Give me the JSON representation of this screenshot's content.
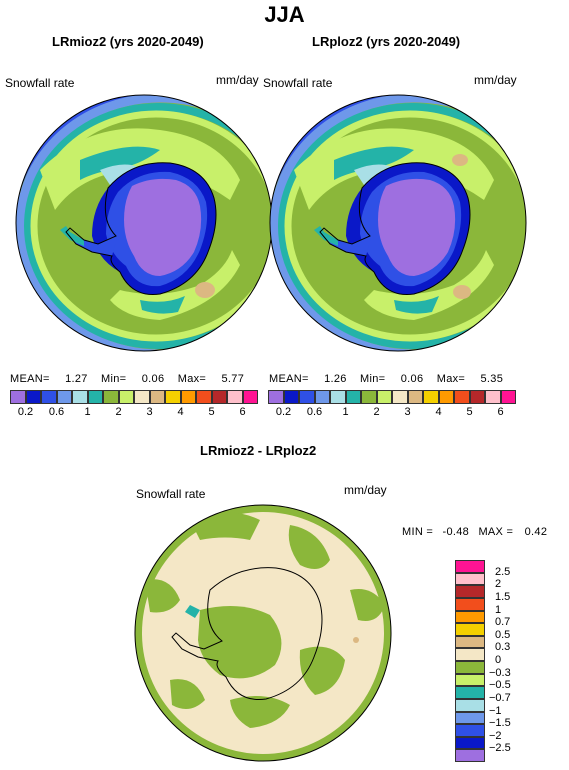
{
  "title": "JJA",
  "panels": [
    {
      "title": "LRmioz2 (yrs 2020-2049)",
      "variable": "Snowfall rate",
      "units": "mm/day",
      "stats": {
        "mean_label": "MEAN=",
        "mean": "1.27",
        "min_label": "Min=",
        "min": "0.06",
        "max_label": "Max=",
        "max": "5.77"
      }
    },
    {
      "title": "LRploz2 (yrs 2020-2049)",
      "variable": "Snowfall rate",
      "units": "mm/day",
      "stats": {
        "mean_label": "MEAN=",
        "mean": "1.26",
        "min_label": "Min=",
        "min": "0.06",
        "max_label": "Max=",
        "max": "5.35"
      }
    }
  ],
  "abs_colorbar": {
    "tick_labels": [
      "0.2",
      "0.6",
      "1",
      "2",
      "3",
      "4",
      "5",
      "6"
    ],
    "colors": [
      "#9e6fe0",
      "#0a18c8",
      "#2f50e6",
      "#6e98ea",
      "#a9dfe6",
      "#24b3a8",
      "#8bb73a",
      "#c8f06a",
      "#f4e7c6",
      "#dcb882",
      "#f4d000",
      "#ff9a00",
      "#f24e1c",
      "#b5282a",
      "#ffc0cb",
      "#ff1493"
    ]
  },
  "diff_panel": {
    "title": "LRmioz2 - LRploz2",
    "variable": "Snowfall rate",
    "units": "mm/day",
    "stats": {
      "min_label": "MIN =",
      "min": "-0.48",
      "max_label": "MAX =",
      "max": "0.42"
    }
  },
  "diff_colorbar": {
    "tick_labels": [
      "2.5",
      "2",
      "1.5",
      "1",
      "0.7",
      "0.5",
      "0.3",
      "0",
      "−0.3",
      "−0.5",
      "−0.7",
      "−1",
      "−1.5",
      "−2",
      "−2.5"
    ],
    "colors": [
      "#ff1493",
      "#ffc0cb",
      "#b5282a",
      "#f24e1c",
      "#ff9a00",
      "#f4d000",
      "#dcb882",
      "#f4e7c6",
      "#8bb73a",
      "#c8f06a",
      "#24b3a8",
      "#a9dfe6",
      "#6e98ea",
      "#2f50e6",
      "#0a18c8",
      "#9e6fe0"
    ]
  },
  "map_colors": {
    "ocean_green": "#8bb73a",
    "lime": "#c8f06a",
    "teal": "#24b3a8",
    "light_cyan": "#a9dfe6",
    "cornflower": "#6e98ea",
    "royal_blue": "#2f50e6",
    "dark_blue": "#0a18c8",
    "purple": "#9e6fe0",
    "cream": "#f4e7c6",
    "tan": "#dcb882"
  }
}
